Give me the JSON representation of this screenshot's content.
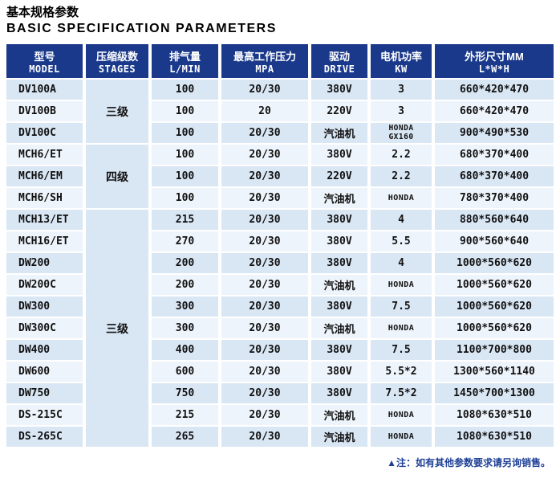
{
  "page": {
    "title_zh": "基本规格参数",
    "title_en": "BASIC SPECIFICATION PARAMETERS"
  },
  "colors": {
    "header_bg": "#1a398b",
    "header_text": "#ffffff",
    "row_odd_bg": "#d9e6f4",
    "row_even_bg": "#eef4fb",
    "note_text": "#1d3f96"
  },
  "table": {
    "columns": [
      {
        "zh": "型号",
        "en": "MODEL"
      },
      {
        "zh": "压缩级数",
        "en": "STAGES"
      },
      {
        "zh": "排气量",
        "en": "L/MIN"
      },
      {
        "zh": "最高工作压力",
        "en": "MPA"
      },
      {
        "zh": "驱动",
        "en": "DRIVE"
      },
      {
        "zh": "电机功率",
        "en": "KW"
      },
      {
        "zh": "外形尺寸MM",
        "en": "L*W*H"
      }
    ],
    "stage_groups": [
      {
        "label": "三级",
        "start": 0,
        "span": 3
      },
      {
        "label": "四级",
        "start": 3,
        "span": 3
      },
      {
        "label": "三级",
        "start": 6,
        "span": 11
      }
    ],
    "rows": [
      {
        "model": "DV100A",
        "displacement": "100",
        "pressure": "20/30",
        "drive": "380V",
        "power": "3",
        "dimensions": "660*420*470"
      },
      {
        "model": "DV100B",
        "displacement": "100",
        "pressure": "20",
        "drive": "220V",
        "power": "3",
        "dimensions": "660*420*470"
      },
      {
        "model": "DV100C",
        "displacement": "100",
        "pressure": "20/30",
        "drive": "汽油机",
        "power": "HONDA\nGX160",
        "dimensions": "900*490*530"
      },
      {
        "model": "MCH6/ET",
        "displacement": "100",
        "pressure": "20/30",
        "drive": "380V",
        "power": "2.2",
        "dimensions": "680*370*400"
      },
      {
        "model": "MCH6/EM",
        "displacement": "100",
        "pressure": "20/30",
        "drive": "220V",
        "power": "2.2",
        "dimensions": "680*370*400"
      },
      {
        "model": "MCH6/SH",
        "displacement": "100",
        "pressure": "20/30",
        "drive": "汽油机",
        "power": "HONDA",
        "dimensions": "780*370*400"
      },
      {
        "model": "MCH13/ET",
        "displacement": "215",
        "pressure": "20/30",
        "drive": "380V",
        "power": "4",
        "dimensions": "880*560*640"
      },
      {
        "model": "MCH16/ET",
        "displacement": "270",
        "pressure": "20/30",
        "drive": "380V",
        "power": "5.5",
        "dimensions": "900*560*640"
      },
      {
        "model": "DW200",
        "displacement": "200",
        "pressure": "20/30",
        "drive": "380V",
        "power": "4",
        "dimensions": "1000*560*620"
      },
      {
        "model": "DW200C",
        "displacement": "200",
        "pressure": "20/30",
        "drive": "汽油机",
        "power": "HONDA",
        "dimensions": "1000*560*620"
      },
      {
        "model": "DW300",
        "displacement": "300",
        "pressure": "20/30",
        "drive": "380V",
        "power": "7.5",
        "dimensions": "1000*560*620"
      },
      {
        "model": "DW300C",
        "displacement": "300",
        "pressure": "20/30",
        "drive": "汽油机",
        "power": "HONDA",
        "dimensions": "1000*560*620"
      },
      {
        "model": "DW400",
        "displacement": "400",
        "pressure": "20/30",
        "drive": "380V",
        "power": "7.5",
        "dimensions": "1100*700*800"
      },
      {
        "model": "DW600",
        "displacement": "600",
        "pressure": "20/30",
        "drive": "380V",
        "power": "5.5*2",
        "dimensions": "1300*560*1140"
      },
      {
        "model": "DW750",
        "displacement": "750",
        "pressure": "20/30",
        "drive": "380V",
        "power": "7.5*2",
        "dimensions": "1450*700*1300"
      },
      {
        "model": "DS-215C",
        "displacement": "215",
        "pressure": "20/30",
        "drive": "汽油机",
        "power": "HONDA",
        "dimensions": "1080*630*510"
      },
      {
        "model": "DS-265C",
        "displacement": "265",
        "pressure": "20/30",
        "drive": "汽油机",
        "power": "HONDA",
        "dimensions": "1080*630*510"
      }
    ]
  },
  "footer": {
    "note": "▲注：如有其他参数要求请另询销售。"
  }
}
